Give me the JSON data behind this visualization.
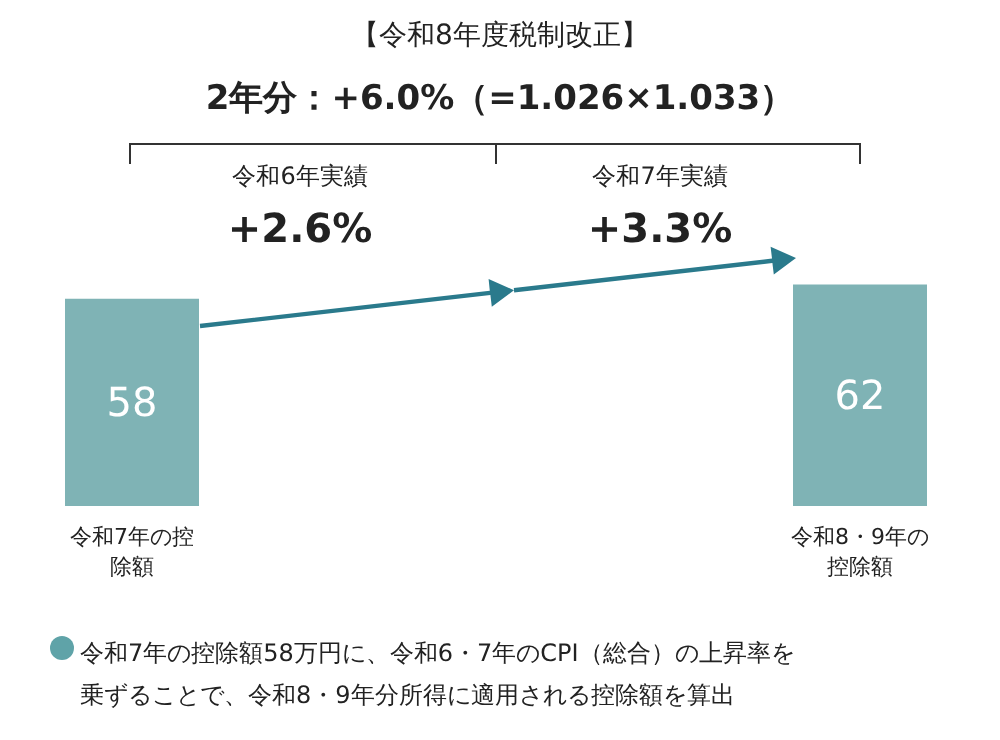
{
  "chart_data": {
    "type": "bar",
    "title": "【令和8年度税制改正】",
    "subtitle": "2年分：+6.0%（=1.026×1.033）",
    "categories": [
      "令和7年の控除額",
      "令和8・9年の控除額"
    ],
    "values": [
      58,
      62
    ],
    "color": "#7fb3b5",
    "data_labels": true,
    "annotations": [
      "令和6年実績",
      "+2.6%",
      "令和7年実績",
      "+3.3%",
      "令和7年の控除額58万円に、令和6・7年のCPI（総合）の上昇率を乗ずることで、令和8・9年分所得に適用される控除額を算出"
    ]
  }
}
